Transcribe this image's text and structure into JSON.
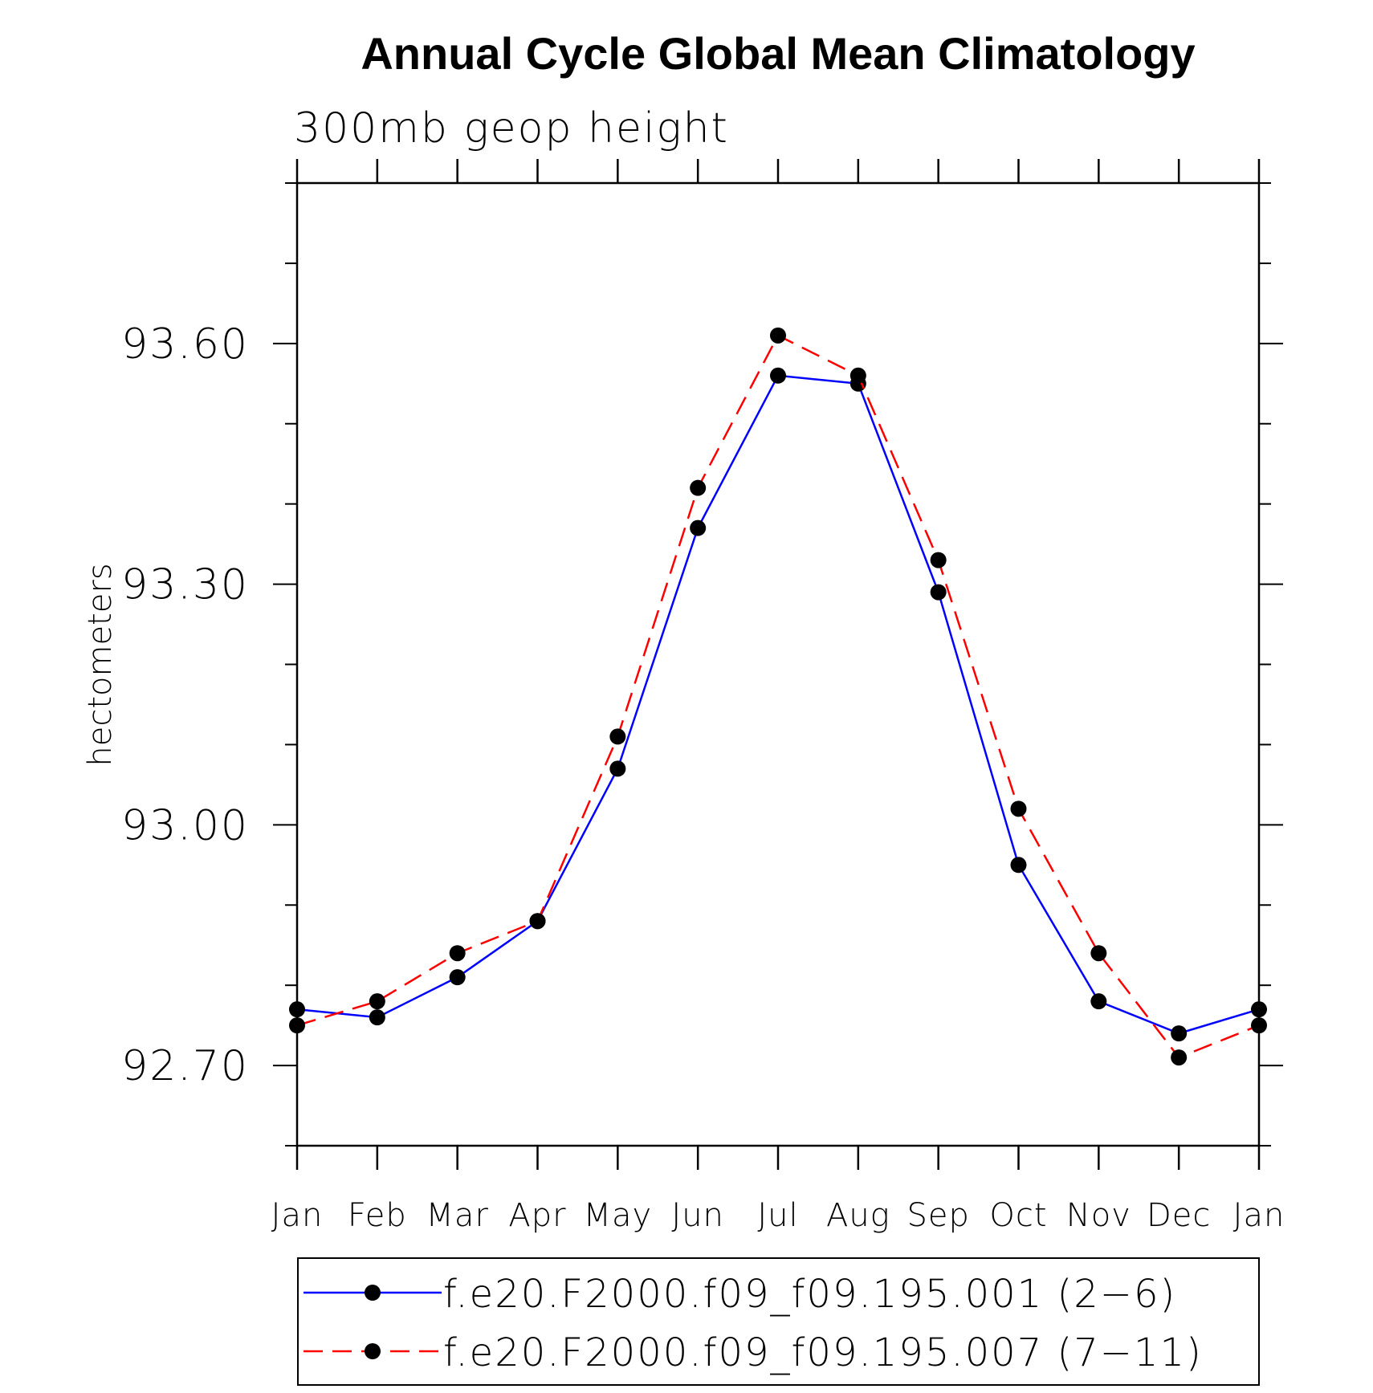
{
  "chart_data": {
    "type": "line",
    "title": "Annual Cycle Global Mean Climatology",
    "subtitle": "300mb geop height",
    "xlabel": "",
    "ylabel": "hectometers",
    "categories": [
      "Jan",
      "Feb",
      "Mar",
      "Apr",
      "May",
      "Jun",
      "Jul",
      "Aug",
      "Sep",
      "Oct",
      "Nov",
      "Dec",
      "Jan"
    ],
    "ylim": [
      92.6,
      93.8
    ],
    "yticks": [
      "92.70",
      "93.00",
      "93.30",
      "93.60"
    ],
    "grid": false,
    "legend_position": "bottom",
    "series": [
      {
        "name": "f.e20.F2000.f09_f09.195.001 (2−6)",
        "color": "#0000ff",
        "dash": "solid",
        "values": [
          92.77,
          92.76,
          92.81,
          92.88,
          93.07,
          93.37,
          93.56,
          93.55,
          93.29,
          92.95,
          92.78,
          92.74,
          92.77
        ]
      },
      {
        "name": "f.e20.F2000.f09_f09.195.007 (7−11)",
        "color": "#ff0000",
        "dash": "dashed",
        "values": [
          92.75,
          92.78,
          92.84,
          92.88,
          93.11,
          93.42,
          93.61,
          93.56,
          93.33,
          93.02,
          92.84,
          92.71,
          92.75
        ]
      }
    ]
  }
}
